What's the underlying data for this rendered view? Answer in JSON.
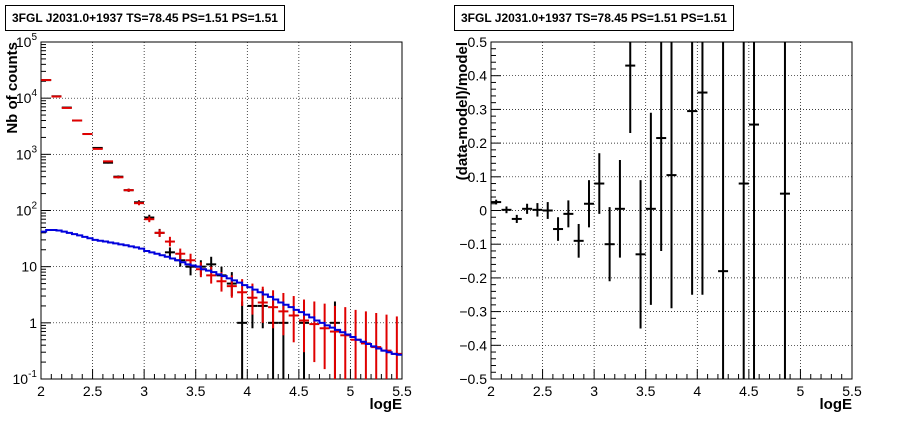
{
  "chart_data": [
    {
      "type": "scatter",
      "title": "3FGL J2031.0+1937 TS=78.45 PS=1.51 PS=1.51",
      "xlabel": "logE",
      "ylabel": "Nb of counts",
      "xlim": [
        2,
        5.5
      ],
      "ylim": [
        0.1,
        100000
      ],
      "log_y": true,
      "grid": true,
      "x_ticks": [
        "2",
        "2.5",
        "3",
        "3.5",
        "4",
        "4.5",
        "5",
        "5.5"
      ],
      "y_ticks": [
        "10^-1",
        "1",
        "10",
        "10^2",
        "10^3",
        "10^4",
        "10^5"
      ],
      "series": [
        {
          "color": "#000000",
          "points": [
            {
              "x": 2.05,
              "y": 21000,
              "lo": 20800,
              "hi": 21200
            },
            {
              "x": 2.15,
              "y": 10800,
              "lo": 10600,
              "hi": 11000
            },
            {
              "x": 2.25,
              "y": 6800,
              "lo": 6700,
              "hi": 6900
            },
            {
              "x": 2.35,
              "y": 4000,
              "lo": 3940,
              "hi": 4060
            },
            {
              "x": 2.45,
              "y": 2300,
              "lo": 2250,
              "hi": 2350
            },
            {
              "x": 2.55,
              "y": 1300,
              "lo": 1260,
              "hi": 1340
            },
            {
              "x": 2.65,
              "y": 710,
              "lo": 685,
              "hi": 735
            },
            {
              "x": 2.75,
              "y": 400,
              "lo": 380,
              "hi": 420
            },
            {
              "x": 2.85,
              "y": 230,
              "lo": 215,
              "hi": 245
            },
            {
              "x": 2.95,
              "y": 140,
              "lo": 128,
              "hi": 152
            },
            {
              "x": 3.05,
              "y": 75,
              "lo": 66,
              "hi": 84
            },
            {
              "x": 3.15,
              "y": 40,
              "lo": 34,
              "hi": 47
            },
            {
              "x": 3.25,
              "y": 18,
              "lo": 14,
              "hi": 22
            },
            {
              "x": 3.35,
              "y": 13,
              "lo": 10,
              "hi": 17
            },
            {
              "x": 3.45,
              "y": 10,
              "lo": 7,
              "hi": 13
            },
            {
              "x": 3.55,
              "y": 10,
              "lo": 7,
              "hi": 13
            },
            {
              "x": 3.65,
              "y": 11,
              "lo": 8,
              "hi": 15
            },
            {
              "x": 3.75,
              "y": 7,
              "lo": 4.5,
              "hi": 10
            },
            {
              "x": 3.85,
              "y": 5,
              "lo": 3,
              "hi": 8
            },
            {
              "x": 3.95,
              "y": 1,
              "lo": 0.1,
              "hi": 2.4
            },
            {
              "x": 4.05,
              "y": 2,
              "lo": 0.8,
              "hi": 4
            },
            {
              "x": 4.15,
              "y": 2,
              "lo": 0.8,
              "hi": 4
            },
            {
              "x": 4.25,
              "y": 1,
              "lo": 0.1,
              "hi": 2.4
            },
            {
              "x": 4.35,
              "y": 1,
              "lo": 0.1,
              "hi": 2.4
            },
            {
              "x": 4.55,
              "y": 1,
              "lo": 0.1,
              "hi": 2.4
            },
            {
              "x": 4.85,
              "y": 1,
              "lo": 0.1,
              "hi": 2.4
            }
          ]
        },
        {
          "color": "#e00000",
          "points": [
            {
              "x": 2.05,
              "y": 21000,
              "lo": 20800,
              "hi": 21200
            },
            {
              "x": 2.15,
              "y": 10700,
              "lo": 10500,
              "hi": 10900
            },
            {
              "x": 2.25,
              "y": 6700,
              "lo": 6600,
              "hi": 6800
            },
            {
              "x": 2.35,
              "y": 4000,
              "lo": 3940,
              "hi": 4060
            },
            {
              "x": 2.45,
              "y": 2300,
              "lo": 2250,
              "hi": 2350
            },
            {
              "x": 2.55,
              "y": 1250,
              "lo": 1215,
              "hi": 1285
            },
            {
              "x": 2.65,
              "y": 750,
              "lo": 725,
              "hi": 775
            },
            {
              "x": 2.75,
              "y": 390,
              "lo": 372,
              "hi": 408
            },
            {
              "x": 2.85,
              "y": 230,
              "lo": 216,
              "hi": 244
            },
            {
              "x": 2.95,
              "y": 135,
              "lo": 124,
              "hi": 146
            },
            {
              "x": 3.05,
              "y": 70,
              "lo": 62,
              "hi": 78
            },
            {
              "x": 3.15,
              "y": 40,
              "lo": 34,
              "hi": 46
            },
            {
              "x": 3.25,
              "y": 28,
              "lo": 23,
              "hi": 34
            },
            {
              "x": 3.35,
              "y": 17,
              "lo": 13,
              "hi": 21
            },
            {
              "x": 3.45,
              "y": 13,
              "lo": 10,
              "hi": 17
            },
            {
              "x": 3.55,
              "y": 9,
              "lo": 6.5,
              "hi": 12
            },
            {
              "x": 3.65,
              "y": 7,
              "lo": 5,
              "hi": 10
            },
            {
              "x": 3.75,
              "y": 5.5,
              "lo": 3.6,
              "hi": 8
            },
            {
              "x": 3.85,
              "y": 4.5,
              "lo": 2.8,
              "hi": 7
            },
            {
              "x": 3.95,
              "y": 3.5,
              "lo": 2,
              "hi": 6
            },
            {
              "x": 4.05,
              "y": 2.8,
              "lo": 1.4,
              "hi": 5
            },
            {
              "x": 4.15,
              "y": 2.3,
              "lo": 1,
              "hi": 4.4
            },
            {
              "x": 4.25,
              "y": 1.9,
              "lo": 0.8,
              "hi": 3.8
            },
            {
              "x": 4.35,
              "y": 1.6,
              "lo": 0.6,
              "hi": 3.4
            },
            {
              "x": 4.45,
              "y": 1.35,
              "lo": 0.45,
              "hi": 3
            },
            {
              "x": 4.55,
              "y": 1.1,
              "lo": 0.3,
              "hi": 2.6
            },
            {
              "x": 4.65,
              "y": 0.95,
              "lo": 0.2,
              "hi": 2.4
            },
            {
              "x": 4.75,
              "y": 0.8,
              "lo": 0.15,
              "hi": 2.2
            },
            {
              "x": 4.85,
              "y": 0.7,
              "lo": 0.1,
              "hi": 2
            },
            {
              "x": 4.95,
              "y": 0.6,
              "lo": 0.1,
              "hi": 1.9
            },
            {
              "x": 5.05,
              "y": 0.5,
              "lo": 0.1,
              "hi": 1.7
            },
            {
              "x": 5.15,
              "y": 0.43,
              "lo": 0.1,
              "hi": 1.6
            },
            {
              "x": 5.25,
              "y": 0.37,
              "lo": 0.1,
              "hi": 1.5
            },
            {
              "x": 5.35,
              "y": 0.32,
              "lo": 0.1,
              "hi": 1.4
            },
            {
              "x": 5.45,
              "y": 0.28,
              "lo": 0.1,
              "hi": 1.3
            }
          ]
        },
        {
          "color": "#0000dd",
          "step": true,
          "bin_width": 0.05,
          "points": [
            {
              "x": 2.0,
              "y": 42
            },
            {
              "x": 2.05,
              "y": 45
            },
            {
              "x": 2.1,
              "y": 45
            },
            {
              "x": 2.15,
              "y": 44
            },
            {
              "x": 2.2,
              "y": 42
            },
            {
              "x": 2.25,
              "y": 40
            },
            {
              "x": 2.3,
              "y": 38
            },
            {
              "x": 2.35,
              "y": 36
            },
            {
              "x": 2.4,
              "y": 34
            },
            {
              "x": 2.45,
              "y": 32
            },
            {
              "x": 2.5,
              "y": 30
            },
            {
              "x": 2.55,
              "y": 29
            },
            {
              "x": 2.6,
              "y": 28
            },
            {
              "x": 2.65,
              "y": 27
            },
            {
              "x": 2.7,
              "y": 26
            },
            {
              "x": 2.75,
              "y": 25
            },
            {
              "x": 2.8,
              "y": 24
            },
            {
              "x": 2.85,
              "y": 23
            },
            {
              "x": 2.9,
              "y": 22
            },
            {
              "x": 2.95,
              "y": 21
            },
            {
              "x": 3.0,
              "y": 19
            },
            {
              "x": 3.05,
              "y": 18
            },
            {
              "x": 3.1,
              "y": 17
            },
            {
              "x": 3.15,
              "y": 16
            },
            {
              "x": 3.2,
              "y": 15
            },
            {
              "x": 3.25,
              "y": 14
            },
            {
              "x": 3.3,
              "y": 13
            },
            {
              "x": 3.35,
              "y": 12
            },
            {
              "x": 3.4,
              "y": 11
            },
            {
              "x": 3.45,
              "y": 10.5
            },
            {
              "x": 3.5,
              "y": 10
            },
            {
              "x": 3.55,
              "y": 9
            },
            {
              "x": 3.6,
              "y": 8.5
            },
            {
              "x": 3.65,
              "y": 8
            },
            {
              "x": 3.7,
              "y": 7.3
            },
            {
              "x": 3.75,
              "y": 6.8
            },
            {
              "x": 3.8,
              "y": 6.2
            },
            {
              "x": 3.85,
              "y": 5.7
            },
            {
              "x": 3.9,
              "y": 5.2
            },
            {
              "x": 3.95,
              "y": 4.7
            },
            {
              "x": 4.0,
              "y": 4.3
            },
            {
              "x": 4.05,
              "y": 3.9
            },
            {
              "x": 4.1,
              "y": 3.5
            },
            {
              "x": 4.15,
              "y": 3.2
            },
            {
              "x": 4.2,
              "y": 2.9
            },
            {
              "x": 4.25,
              "y": 2.6
            },
            {
              "x": 4.3,
              "y": 2.3
            },
            {
              "x": 4.35,
              "y": 2.1
            },
            {
              "x": 4.4,
              "y": 1.9
            },
            {
              "x": 4.45,
              "y": 1.7
            },
            {
              "x": 4.5,
              "y": 1.55
            },
            {
              "x": 4.55,
              "y": 1.4
            },
            {
              "x": 4.6,
              "y": 1.25
            },
            {
              "x": 4.65,
              "y": 1.1
            },
            {
              "x": 4.7,
              "y": 1.0
            },
            {
              "x": 4.75,
              "y": 0.9
            },
            {
              "x": 4.8,
              "y": 0.82
            },
            {
              "x": 4.85,
              "y": 0.75
            },
            {
              "x": 4.9,
              "y": 0.68
            },
            {
              "x": 4.95,
              "y": 0.62
            },
            {
              "x": 5.0,
              "y": 0.56
            },
            {
              "x": 5.05,
              "y": 0.5
            },
            {
              "x": 5.1,
              "y": 0.46
            },
            {
              "x": 5.15,
              "y": 0.42
            },
            {
              "x": 5.2,
              "y": 0.38
            },
            {
              "x": 5.25,
              "y": 0.35
            },
            {
              "x": 5.3,
              "y": 0.32
            },
            {
              "x": 5.35,
              "y": 0.3
            },
            {
              "x": 5.4,
              "y": 0.28
            },
            {
              "x": 5.45,
              "y": 0.27
            }
          ]
        }
      ]
    },
    {
      "type": "scatter",
      "title": "3FGL J2031.0+1937 TS=78.45 PS=1.51 PS=1.51",
      "xlabel": "logE",
      "ylabel": "(data-model)/model",
      "xlim": [
        2,
        5.5
      ],
      "ylim": [
        -0.5,
        0.5
      ],
      "log_y": false,
      "grid": true,
      "x_ticks": [
        "2",
        "2.5",
        "3",
        "3.5",
        "4",
        "4.5",
        "5",
        "5.5"
      ],
      "y_ticks": [
        "-0.5",
        "-0.4",
        "-0.3",
        "-0.2",
        "-0.1",
        "0",
        "0.1",
        "0.2",
        "0.3",
        "0.4",
        "0.5"
      ],
      "series": [
        {
          "color": "#000000",
          "points": [
            {
              "x": 2.05,
              "y": 0.025,
              "lo": 0.018,
              "hi": 0.032
            },
            {
              "x": 2.15,
              "y": 0.002,
              "lo": -0.008,
              "hi": 0.012
            },
            {
              "x": 2.25,
              "y": -0.025,
              "lo": -0.037,
              "hi": -0.013
            },
            {
              "x": 2.35,
              "y": 0.005,
              "lo": -0.01,
              "hi": 0.02
            },
            {
              "x": 2.45,
              "y": 0.002,
              "lo": -0.018,
              "hi": 0.022
            },
            {
              "x": 2.55,
              "y": 0.0,
              "lo": -0.025,
              "hi": 0.025
            },
            {
              "x": 2.65,
              "y": -0.055,
              "lo": -0.09,
              "hi": -0.02
            },
            {
              "x": 2.75,
              "y": -0.01,
              "lo": -0.05,
              "hi": 0.03
            },
            {
              "x": 2.85,
              "y": -0.09,
              "lo": -0.14,
              "hi": -0.04
            },
            {
              "x": 2.95,
              "y": 0.02,
              "lo": -0.05,
              "hi": 0.09
            },
            {
              "x": 3.05,
              "y": 0.08,
              "lo": -0.01,
              "hi": 0.17
            },
            {
              "x": 3.15,
              "y": -0.1,
              "lo": -0.21,
              "hi": 0.01
            },
            {
              "x": 3.25,
              "y": 0.005,
              "lo": -0.14,
              "hi": 0.15
            },
            {
              "x": 3.35,
              "y": 0.43,
              "lo": 0.23,
              "hi": 0.5
            },
            {
              "x": 3.45,
              "y": -0.13,
              "lo": -0.35,
              "hi": 0.09
            },
            {
              "x": 3.55,
              "y": 0.005,
              "lo": -0.28,
              "hi": 0.29
            },
            {
              "x": 3.65,
              "y": 0.215,
              "lo": -0.12,
              "hi": 0.5
            },
            {
              "x": 3.75,
              "y": 0.105,
              "lo": -0.29,
              "hi": 0.5
            },
            {
              "x": 3.95,
              "y": 0.295,
              "lo": -0.25,
              "hi": 0.5
            },
            {
              "x": 4.05,
              "y": 0.35,
              "lo": -0.25,
              "hi": 0.5
            },
            {
              "x": 4.25,
              "y": -0.18,
              "lo": -0.5,
              "hi": 0.5
            },
            {
              "x": 4.45,
              "y": 0.08,
              "lo": -0.5,
              "hi": 0.5
            },
            {
              "x": 4.55,
              "y": 0.255,
              "lo": -0.5,
              "hi": 0.5
            },
            {
              "x": 4.85,
              "y": 0.05,
              "lo": -0.5,
              "hi": 0.5
            }
          ]
        }
      ]
    }
  ]
}
